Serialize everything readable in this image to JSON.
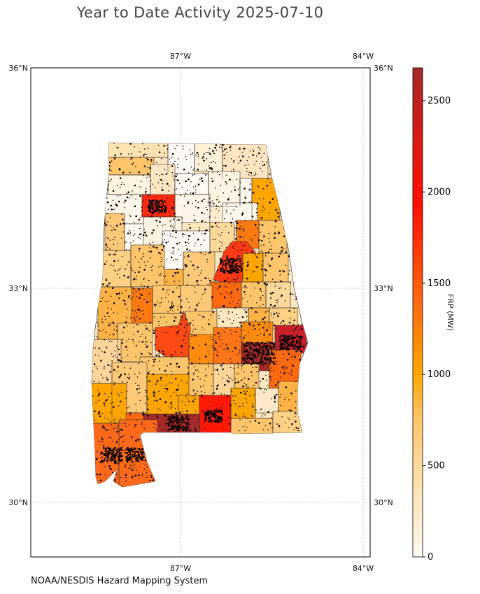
{
  "title": "Year to Date Activity 2025-07-10",
  "credit": "NOAA/NESDIS Hazard Mapping System",
  "map": {
    "top_lon_labels": [
      "87°W",
      "84°W"
    ],
    "bottom_lon_labels": [
      "87°W",
      "84°W"
    ],
    "left_lat_labels": [
      "36°N",
      "33°N",
      "30°N"
    ],
    "right_lat_labels": [
      "36°N",
      "33°N",
      "30°N"
    ],
    "lat_range": [
      29.25,
      36.0
    ],
    "lon_range": [
      -89.5,
      -83.9
    ],
    "gridlines": true,
    "detection_marker_color": "#000000",
    "county_border_color": "#222222"
  },
  "colorbar": {
    "label": "FRP (MW)",
    "ticks": [
      "0",
      "500",
      "1000",
      "1500",
      "2000",
      "2500"
    ],
    "min": 0,
    "max": 2680,
    "colors": [
      "#fffaf3",
      "#ffe3b3",
      "#ffc56a",
      "#ffa500",
      "#ff6a10",
      "#ff2a05",
      "#e01a10",
      "#a52a2a"
    ]
  },
  "chart_data": {
    "type": "heatmap",
    "title": "Year to Date Activity 2025-07-10",
    "value_label": "FRP (MW)",
    "value_range": [
      0,
      2680
    ],
    "notable_regions": [
      {
        "label": "southeast (Randolph/Chambers area)",
        "value": 2600
      },
      {
        "label": "east-central dark region",
        "value": 2500
      },
      {
        "label": "south-central strip (Escambia area)",
        "value": 2600
      },
      {
        "label": "south-central (Covington area)",
        "value": 2000
      },
      {
        "label": "northwest (Winston area)",
        "value": 1900
      },
      {
        "label": "central (Shelby/St. Clair area)",
        "value": 1700
      },
      {
        "label": "central-west (Autauga area)",
        "value": 1550
      },
      {
        "label": "southwest (Mobile/Baldwin)",
        "value": 1300
      }
    ]
  }
}
